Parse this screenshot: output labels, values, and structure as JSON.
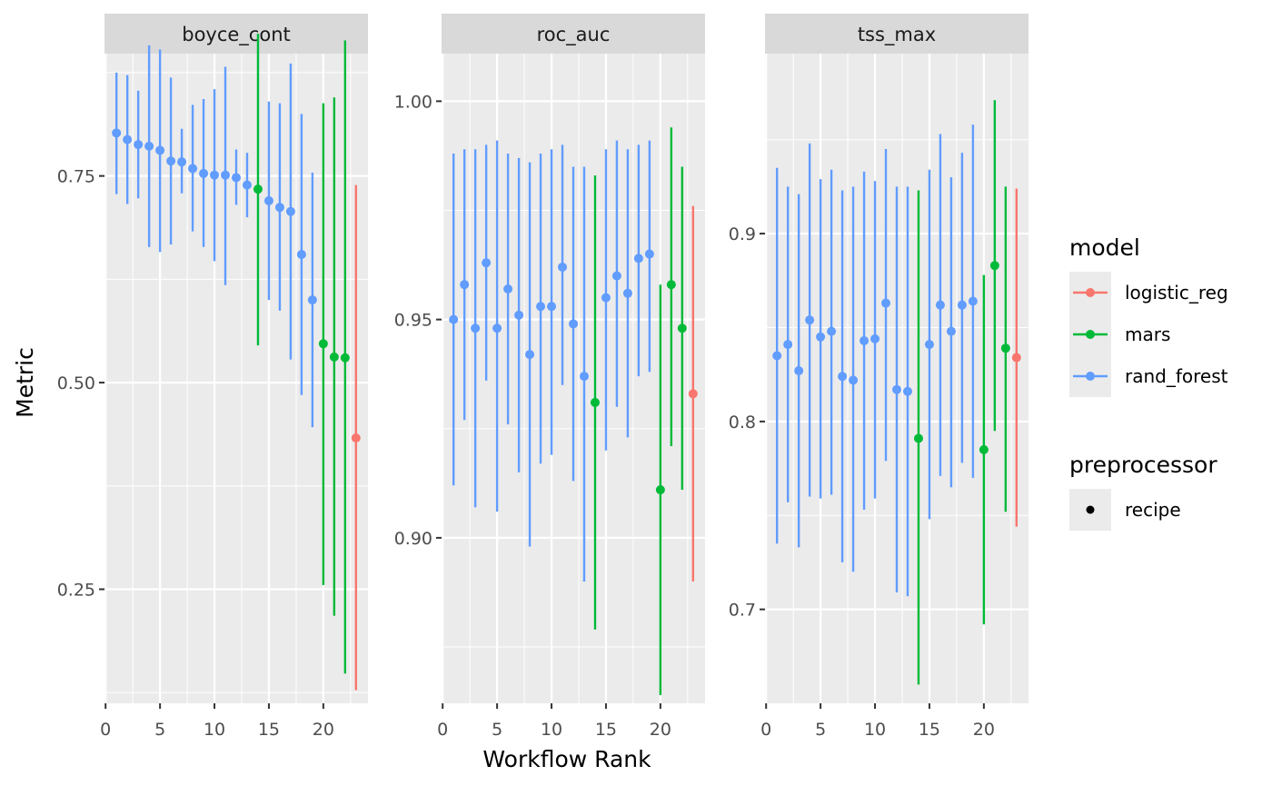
{
  "chart_data": {
    "type": "scatter",
    "subtype": "point-range faceted",
    "xlabel": "Workflow Rank",
    "ylabel": "Metric",
    "colors": {
      "logistic_reg": "#F8766D",
      "mars": "#00BA38",
      "rand_forest": "#619CFF"
    },
    "legend": {
      "placement": "right",
      "model_title": "model",
      "model_entries": [
        "logistic_reg",
        "mars",
        "rand_forest"
      ],
      "preprocessor_title": "preprocessor",
      "preprocessor_entries": [
        "recipe"
      ]
    },
    "panels": [
      {
        "label": "boyce_cont",
        "xlim": [
          -0.1,
          24.1
        ],
        "xticks": [
          0,
          5,
          10,
          15,
          20
        ],
        "ylim": [
          0.112,
          0.898
        ],
        "yticks": [
          0.25,
          0.5,
          0.75
        ],
        "ytick_labels": [
          "0.25",
          "0.50",
          "0.75"
        ],
        "points": [
          {
            "rank": 1,
            "model": "rand_forest",
            "mean": 0.802,
            "lower": 0.728,
            "upper": 0.875
          },
          {
            "rank": 2,
            "model": "rand_forest",
            "mean": 0.794,
            "lower": 0.716,
            "upper": 0.872
          },
          {
            "rank": 3,
            "model": "rand_forest",
            "mean": 0.788,
            "lower": 0.723,
            "upper": 0.853
          },
          {
            "rank": 4,
            "model": "rand_forest",
            "mean": 0.786,
            "lower": 0.664,
            "upper": 0.908
          },
          {
            "rank": 5,
            "model": "rand_forest",
            "mean": 0.781,
            "lower": 0.658,
            "upper": 0.903
          },
          {
            "rank": 6,
            "model": "rand_forest",
            "mean": 0.768,
            "lower": 0.667,
            "upper": 0.869
          },
          {
            "rank": 7,
            "model": "rand_forest",
            "mean": 0.767,
            "lower": 0.729,
            "upper": 0.807
          },
          {
            "rank": 8,
            "model": "rand_forest",
            "mean": 0.759,
            "lower": 0.683,
            "upper": 0.836
          },
          {
            "rank": 9,
            "model": "rand_forest",
            "mean": 0.753,
            "lower": 0.664,
            "upper": 0.843
          },
          {
            "rank": 10,
            "model": "rand_forest",
            "mean": 0.751,
            "lower": 0.647,
            "upper": 0.855
          },
          {
            "rank": 11,
            "model": "rand_forest",
            "mean": 0.751,
            "lower": 0.618,
            "upper": 0.882
          },
          {
            "rank": 12,
            "model": "rand_forest",
            "mean": 0.748,
            "lower": 0.715,
            "upper": 0.782
          },
          {
            "rank": 13,
            "model": "rand_forest",
            "mean": 0.739,
            "lower": 0.7,
            "upper": 0.778
          },
          {
            "rank": 14,
            "model": "mars",
            "mean": 0.734,
            "lower": 0.545,
            "upper": 0.922
          },
          {
            "rank": 15,
            "model": "rand_forest",
            "mean": 0.72,
            "lower": 0.6,
            "upper": 0.84
          },
          {
            "rank": 16,
            "model": "rand_forest",
            "mean": 0.712,
            "lower": 0.587,
            "upper": 0.838
          },
          {
            "rank": 17,
            "model": "rand_forest",
            "mean": 0.707,
            "lower": 0.528,
            "upper": 0.886
          },
          {
            "rank": 18,
            "model": "rand_forest",
            "mean": 0.655,
            "lower": 0.485,
            "upper": 0.825
          },
          {
            "rank": 19,
            "model": "rand_forest",
            "mean": 0.6,
            "lower": 0.446,
            "upper": 0.754
          },
          {
            "rank": 20,
            "model": "mars",
            "mean": 0.547,
            "lower": 0.255,
            "upper": 0.838
          },
          {
            "rank": 21,
            "model": "mars",
            "mean": 0.531,
            "lower": 0.218,
            "upper": 0.845
          },
          {
            "rank": 22,
            "model": "mars",
            "mean": 0.53,
            "lower": 0.148,
            "upper": 0.914
          },
          {
            "rank": 23,
            "model": "logistic_reg",
            "mean": 0.433,
            "lower": 0.128,
            "upper": 0.739
          }
        ]
      },
      {
        "label": "roc_auc",
        "xlim": [
          -0.1,
          24.1
        ],
        "xticks": [
          0,
          5,
          10,
          15,
          20
        ],
        "ylim": [
          0.8621,
          1.0109
        ],
        "yticks": [
          0.9,
          0.95,
          1.0
        ],
        "ytick_labels": [
          "0.90",
          "0.95",
          "1.00"
        ],
        "points": [
          {
            "rank": 1,
            "model": "rand_forest",
            "mean": 0.95,
            "lower": 0.912,
            "upper": 0.988
          },
          {
            "rank": 2,
            "model": "rand_forest",
            "mean": 0.958,
            "lower": 0.927,
            "upper": 0.989
          },
          {
            "rank": 3,
            "model": "rand_forest",
            "mean": 0.948,
            "lower": 0.907,
            "upper": 0.989
          },
          {
            "rank": 4,
            "model": "rand_forest",
            "mean": 0.963,
            "lower": 0.936,
            "upper": 0.99
          },
          {
            "rank": 5,
            "model": "rand_forest",
            "mean": 0.948,
            "lower": 0.906,
            "upper": 0.991
          },
          {
            "rank": 6,
            "model": "rand_forest",
            "mean": 0.957,
            "lower": 0.926,
            "upper": 0.988
          },
          {
            "rank": 7,
            "model": "rand_forest",
            "mean": 0.951,
            "lower": 0.915,
            "upper": 0.987
          },
          {
            "rank": 8,
            "model": "rand_forest",
            "mean": 0.942,
            "lower": 0.898,
            "upper": 0.986
          },
          {
            "rank": 9,
            "model": "rand_forest",
            "mean": 0.953,
            "lower": 0.917,
            "upper": 0.988
          },
          {
            "rank": 10,
            "model": "rand_forest",
            "mean": 0.953,
            "lower": 0.919,
            "upper": 0.989
          },
          {
            "rank": 11,
            "model": "rand_forest",
            "mean": 0.962,
            "lower": 0.935,
            "upper": 0.99
          },
          {
            "rank": 12,
            "model": "rand_forest",
            "mean": 0.949,
            "lower": 0.913,
            "upper": 0.985
          },
          {
            "rank": 13,
            "model": "rand_forest",
            "mean": 0.937,
            "lower": 0.89,
            "upper": 0.985
          },
          {
            "rank": 14,
            "model": "mars",
            "mean": 0.931,
            "lower": 0.879,
            "upper": 0.983
          },
          {
            "rank": 15,
            "model": "rand_forest",
            "mean": 0.955,
            "lower": 0.92,
            "upper": 0.989
          },
          {
            "rank": 16,
            "model": "rand_forest",
            "mean": 0.96,
            "lower": 0.93,
            "upper": 0.991
          },
          {
            "rank": 17,
            "model": "rand_forest",
            "mean": 0.956,
            "lower": 0.923,
            "upper": 0.989
          },
          {
            "rank": 18,
            "model": "rand_forest",
            "mean": 0.964,
            "lower": 0.937,
            "upper": 0.99
          },
          {
            "rank": 19,
            "model": "rand_forest",
            "mean": 0.965,
            "lower": 0.938,
            "upper": 0.991
          },
          {
            "rank": 20,
            "model": "mars",
            "mean": 0.911,
            "lower": 0.864,
            "upper": 0.958
          },
          {
            "rank": 21,
            "model": "mars",
            "mean": 0.958,
            "lower": 0.921,
            "upper": 0.994
          },
          {
            "rank": 22,
            "model": "mars",
            "mean": 0.948,
            "lower": 0.911,
            "upper": 0.985
          },
          {
            "rank": 23,
            "model": "logistic_reg",
            "mean": 0.933,
            "lower": 0.89,
            "upper": 0.976
          }
        ]
      },
      {
        "label": "tss_max",
        "xlim": [
          -0.1,
          24.1
        ],
        "xticks": [
          0,
          5,
          10,
          15,
          20
        ],
        "ylim": [
          0.65,
          0.9958
        ],
        "yticks": [
          0.7,
          0.8,
          0.9
        ],
        "ytick_labels": [
          "0.7",
          "0.8",
          "0.9"
        ],
        "points": [
          {
            "rank": 1,
            "model": "rand_forest",
            "mean": 0.835,
            "lower": 0.735,
            "upper": 0.935
          },
          {
            "rank": 2,
            "model": "rand_forest",
            "mean": 0.841,
            "lower": 0.757,
            "upper": 0.925
          },
          {
            "rank": 3,
            "model": "rand_forest",
            "mean": 0.827,
            "lower": 0.733,
            "upper": 0.921
          },
          {
            "rank": 4,
            "model": "rand_forest",
            "mean": 0.854,
            "lower": 0.76,
            "upper": 0.948
          },
          {
            "rank": 5,
            "model": "rand_forest",
            "mean": 0.845,
            "lower": 0.759,
            "upper": 0.929
          },
          {
            "rank": 6,
            "model": "rand_forest",
            "mean": 0.848,
            "lower": 0.761,
            "upper": 0.934
          },
          {
            "rank": 7,
            "model": "rand_forest",
            "mean": 0.824,
            "lower": 0.725,
            "upper": 0.923
          },
          {
            "rank": 8,
            "model": "rand_forest",
            "mean": 0.822,
            "lower": 0.72,
            "upper": 0.925
          },
          {
            "rank": 9,
            "model": "rand_forest",
            "mean": 0.843,
            "lower": 0.753,
            "upper": 0.933
          },
          {
            "rank": 10,
            "model": "rand_forest",
            "mean": 0.844,
            "lower": 0.759,
            "upper": 0.928
          },
          {
            "rank": 11,
            "model": "rand_forest",
            "mean": 0.863,
            "lower": 0.779,
            "upper": 0.945
          },
          {
            "rank": 12,
            "model": "rand_forest",
            "mean": 0.817,
            "lower": 0.709,
            "upper": 0.925
          },
          {
            "rank": 13,
            "model": "rand_forest",
            "mean": 0.816,
            "lower": 0.707,
            "upper": 0.925
          },
          {
            "rank": 14,
            "model": "mars",
            "mean": 0.791,
            "lower": 0.66,
            "upper": 0.923
          },
          {
            "rank": 15,
            "model": "rand_forest",
            "mean": 0.841,
            "lower": 0.748,
            "upper": 0.934
          },
          {
            "rank": 16,
            "model": "rand_forest",
            "mean": 0.862,
            "lower": 0.771,
            "upper": 0.953
          },
          {
            "rank": 17,
            "model": "rand_forest",
            "mean": 0.848,
            "lower": 0.765,
            "upper": 0.93
          },
          {
            "rank": 18,
            "model": "rand_forest",
            "mean": 0.862,
            "lower": 0.778,
            "upper": 0.943
          },
          {
            "rank": 19,
            "model": "rand_forest",
            "mean": 0.864,
            "lower": 0.77,
            "upper": 0.958
          },
          {
            "rank": 20,
            "model": "mars",
            "mean": 0.785,
            "lower": 0.692,
            "upper": 0.878
          },
          {
            "rank": 21,
            "model": "mars",
            "mean": 0.883,
            "lower": 0.795,
            "upper": 0.971
          },
          {
            "rank": 22,
            "model": "mars",
            "mean": 0.839,
            "lower": 0.752,
            "upper": 0.925
          },
          {
            "rank": 23,
            "model": "logistic_reg",
            "mean": 0.834,
            "lower": 0.744,
            "upper": 0.924
          }
        ]
      }
    ]
  }
}
